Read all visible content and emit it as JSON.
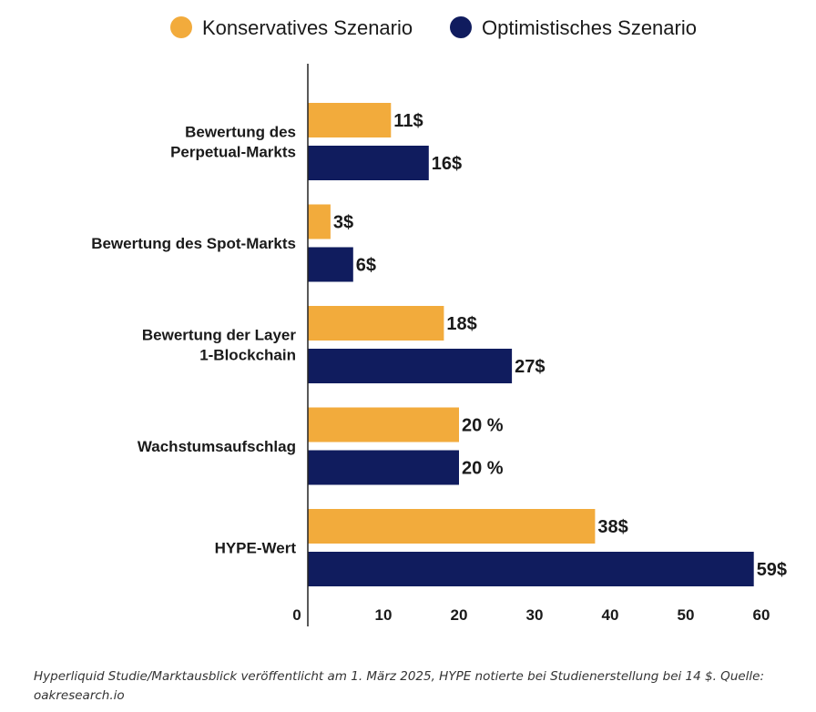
{
  "chart_data": {
    "type": "bar",
    "orientation": "horizontal",
    "categories": [
      [
        "Bewertung des",
        "Perpetual-Markts"
      ],
      [
        "Bewertung des Spot-Markts"
      ],
      [
        "Bewertung der Layer",
        "1-Blockchain"
      ],
      [
        "Wachstumsaufschlag"
      ],
      [
        "HYPE-Wert"
      ]
    ],
    "series": [
      {
        "name": "Konservatives Szenario",
        "color": "#f2ab3c",
        "values": [
          11,
          3,
          18,
          20,
          38
        ],
        "labels": [
          "11$",
          "3$",
          "18$",
          "20 %",
          "38$"
        ]
      },
      {
        "name": "Optimistisches Szenario",
        "color": "#101c5e",
        "values": [
          16,
          6,
          27,
          20,
          59
        ],
        "labels": [
          "16$",
          "6$",
          "27$",
          "20 %",
          "59$"
        ]
      }
    ],
    "xlim": [
      0,
      60
    ],
    "xticks": [
      0,
      10,
      20,
      30,
      40,
      50,
      60
    ],
    "grid": false,
    "legend": "top"
  },
  "caption": "Hyperliquid Studie/Marktausblick veröffentlicht am 1. März 2025, HYPE notierte bei Studienerstellung bei 14 $. Quelle: oakresearch.io"
}
